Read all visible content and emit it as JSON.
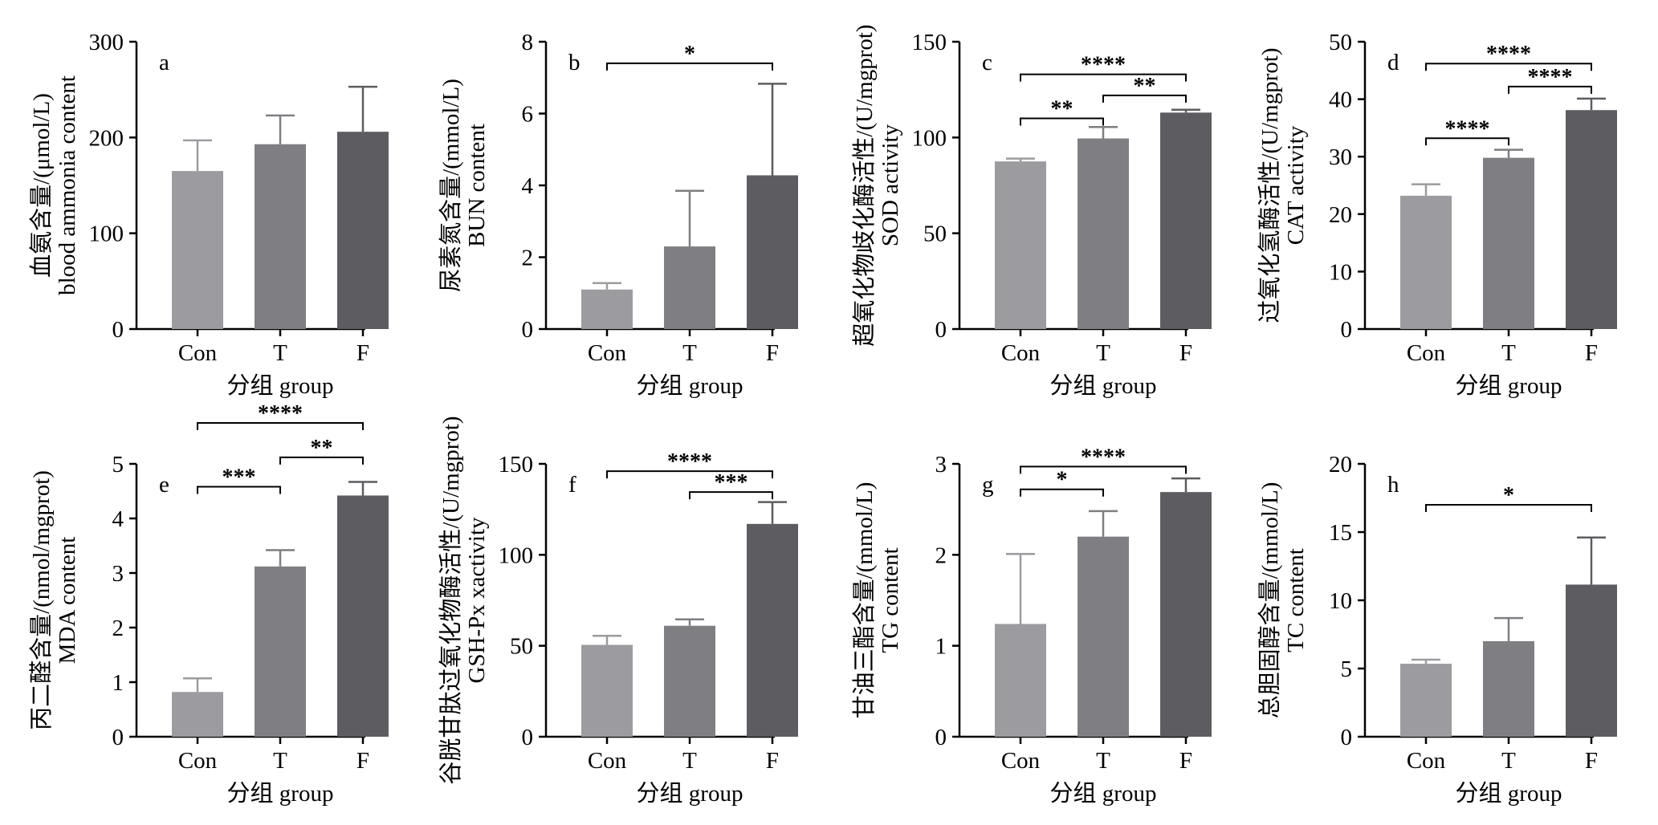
{
  "chart_data": [
    {
      "panel": "a",
      "type": "bar",
      "ylabel": [
        "血氨含量/(μmol/L)",
        "blood ammonia content"
      ],
      "xlabel": "分组 group",
      "categories": [
        "Con",
        "T",
        "F"
      ],
      "values": [
        165,
        193,
        206
      ],
      "errors": [
        32,
        30,
        47
      ],
      "ylim": [
        0,
        300
      ],
      "yticks": [
        0,
        100,
        200,
        300
      ],
      "significance": []
    },
    {
      "panel": "b",
      "type": "bar",
      "ylabel": [
        "尿素氮含量/(mmol/L)",
        "BUN content"
      ],
      "xlabel": "分组 group",
      "categories": [
        "Con",
        "T",
        "F"
      ],
      "values": [
        1.1,
        2.3,
        4.28
      ],
      "errors": [
        0.18,
        1.55,
        2.55
      ],
      "ylim": [
        0,
        8
      ],
      "yticks": [
        0,
        2,
        4,
        6,
        8
      ],
      "significance": [
        {
          "from": 0,
          "to": 2,
          "label": "*",
          "y": 7.4
        }
      ]
    },
    {
      "panel": "c",
      "type": "bar",
      "ylabel": [
        "超氧化物歧化酶活性/(U/mgprot)",
        "SOD activity"
      ],
      "xlabel": "分组 group",
      "categories": [
        "Con",
        "T",
        "F"
      ],
      "values": [
        87.5,
        99.5,
        113
      ],
      "errors": [
        1.5,
        6,
        1.5
      ],
      "ylim": [
        0,
        150
      ],
      "yticks": [
        0,
        50,
        100,
        150
      ],
      "significance": [
        {
          "from": 0,
          "to": 2,
          "label": "****",
          "y": 133
        },
        {
          "from": 1,
          "to": 2,
          "label": "**",
          "y": 122
        },
        {
          "from": 0,
          "to": 1,
          "label": "**",
          "y": 110
        }
      ]
    },
    {
      "panel": "d",
      "type": "bar",
      "ylabel": [
        "过氧化氢酶活性/(U/mgprot)",
        "CAT activity"
      ],
      "xlabel": "分组 group",
      "categories": [
        "Con",
        "T",
        "F"
      ],
      "values": [
        23.2,
        29.8,
        38.1
      ],
      "errors": [
        2,
        1.4,
        2
      ],
      "ylim": [
        0,
        50
      ],
      "yticks": [
        0,
        10,
        20,
        30,
        40,
        50
      ],
      "significance": [
        {
          "from": 0,
          "to": 2,
          "label": "****",
          "y": 46.2
        },
        {
          "from": 1,
          "to": 2,
          "label": "****",
          "y": 42.2
        },
        {
          "from": 0,
          "to": 1,
          "label": "****",
          "y": 33.2
        }
      ]
    },
    {
      "panel": "e",
      "type": "bar",
      "ylabel": [
        "丙二醛含量/(nmol/mgprot)",
        "MDA content"
      ],
      "xlabel": "分组 group",
      "categories": [
        "Con",
        "T",
        "F"
      ],
      "values": [
        0.82,
        3.12,
        4.42
      ],
      "errors": [
        0.25,
        0.3,
        0.25
      ],
      "ylim": [
        0,
        5
      ],
      "yticks": [
        0,
        1,
        2,
        3,
        4,
        5
      ],
      "significance": [
        {
          "from": 0,
          "to": 2,
          "label": "****",
          "y": 5.75
        },
        {
          "from": 1,
          "to": 2,
          "label": "**",
          "y": 5.12
        },
        {
          "from": 0,
          "to": 1,
          "label": "***",
          "y": 4.58
        }
      ]
    },
    {
      "panel": "f",
      "type": "bar",
      "ylabel": [
        "谷胱甘肽过氧化物酶活性/(U/mgprot)",
        "GSH-Px xactivity"
      ],
      "xlabel": "分组 group",
      "categories": [
        "Con",
        "T",
        "F"
      ],
      "values": [
        50.5,
        61,
        117
      ],
      "errors": [
        5,
        3.5,
        12
      ],
      "ylim": [
        0,
        150
      ],
      "yticks": [
        0,
        50,
        100,
        150
      ],
      "significance": [
        {
          "from": 0,
          "to": 2,
          "label": "****",
          "y": 146
        },
        {
          "from": 1,
          "to": 2,
          "label": "***",
          "y": 134.5
        }
      ]
    },
    {
      "panel": "g",
      "type": "bar",
      "ylabel": [
        "甘油三酯含量/(mmol/L)",
        "TG content"
      ],
      "xlabel": "分组 group",
      "categories": [
        "Con",
        "T",
        "F"
      ],
      "values": [
        1.24,
        2.2,
        2.69
      ],
      "errors": [
        0.77,
        0.28,
        0.15
      ],
      "ylim": [
        0,
        3
      ],
      "yticks": [
        0,
        1,
        2,
        3
      ],
      "significance": [
        {
          "from": 0,
          "to": 2,
          "label": "****",
          "y": 2.97
        },
        {
          "from": 0,
          "to": 1,
          "label": "*",
          "y": 2.72
        }
      ]
    },
    {
      "panel": "h",
      "type": "bar",
      "ylabel": [
        "总胆固醇含量/(mmol/L)",
        "TC content"
      ],
      "xlabel": "分组 group",
      "categories": [
        "Con",
        "T",
        "F"
      ],
      "values": [
        5.35,
        7,
        11.15
      ],
      "errors": [
        0.3,
        1.7,
        3.45
      ],
      "ylim": [
        0,
        20
      ],
      "yticks": [
        0,
        5,
        10,
        15,
        20
      ],
      "significance": [
        {
          "from": 0,
          "to": 2,
          "label": "*",
          "y": 17
        }
      ]
    }
  ],
  "colors": {
    "bars": [
      "#9c9b9f",
      "#7f7e82",
      "#5d5c60"
    ],
    "axis": "#000000"
  }
}
